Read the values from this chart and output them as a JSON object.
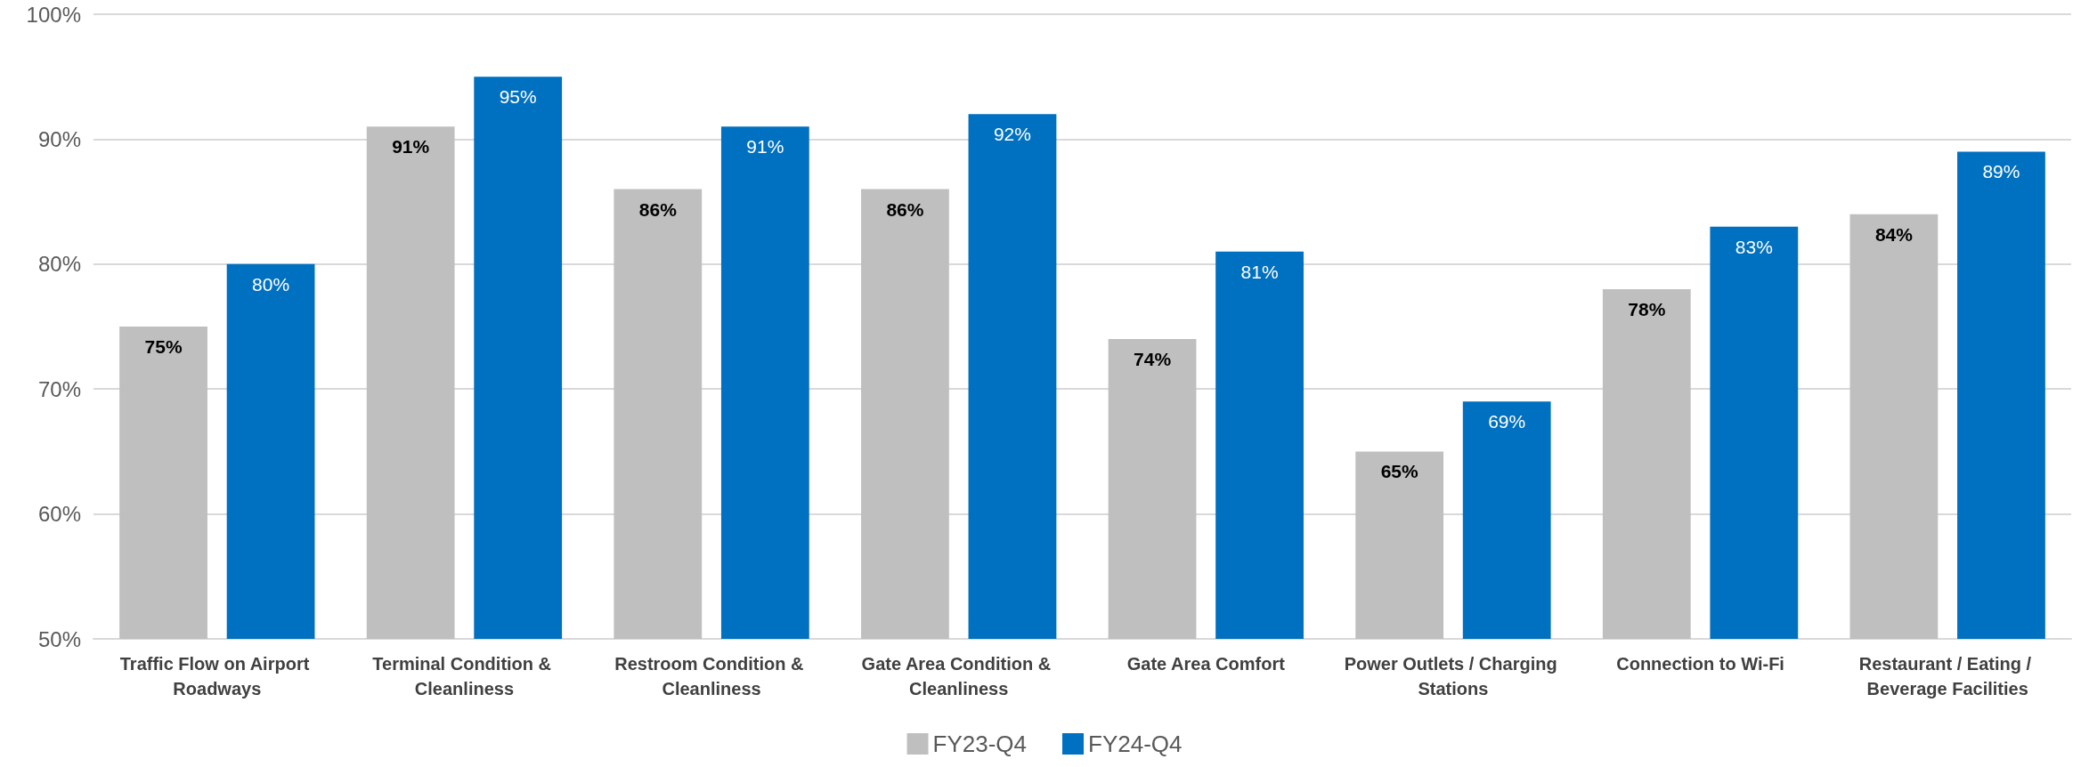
{
  "chart_data": {
    "type": "bar",
    "categories": [
      "Traffic Flow on Airport Roadways",
      "Terminal Condition & Cleanliness",
      "Restroom Condition & Cleanliness",
      "Gate Area Condition & Cleanliness",
      "Gate Area Comfort",
      "Power Outlets / Charging Stations",
      "Connection to Wi-Fi",
      "Restaurant / Eating / Beverage Facilities"
    ],
    "series": [
      {
        "name": "FY23-Q4",
        "color": "#bfbfbf",
        "values": [
          75,
          91,
          86,
          86,
          74,
          65,
          78,
          84
        ],
        "value_labels": [
          "75%",
          "91%",
          "86%",
          "86%",
          "74%",
          "65%",
          "78%",
          "84%"
        ]
      },
      {
        "name": "FY24-Q4",
        "color": "#0070c0",
        "values": [
          80,
          95,
          91,
          92,
          81,
          69,
          83,
          89
        ],
        "value_labels": [
          "80%",
          "95%",
          "91%",
          "92%",
          "81%",
          "69%",
          "83%",
          "89%"
        ]
      }
    ],
    "ylim": [
      50,
      100
    ],
    "yticks": [
      {
        "value": 50,
        "label": "50%"
      },
      {
        "value": 60,
        "label": "60%"
      },
      {
        "value": 70,
        "label": "70%"
      },
      {
        "value": 80,
        "label": "80%"
      },
      {
        "value": 90,
        "label": "90%"
      },
      {
        "value": 100,
        "label": "100%"
      }
    ],
    "grid": "y",
    "legend": "bottom"
  }
}
